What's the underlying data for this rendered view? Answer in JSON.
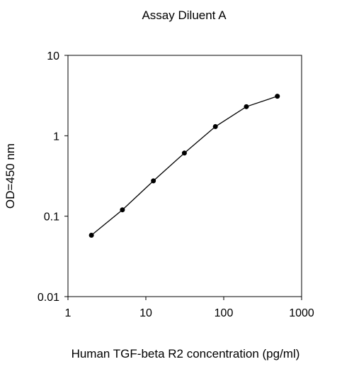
{
  "chart_data": {
    "type": "line",
    "title": "Assay Diluent A",
    "xlabel": "Human TGF-beta R2 concentration (pg/ml)",
    "ylabel": "OD=450 nm",
    "x_scale": "log",
    "y_scale": "log",
    "xlim": [
      1,
      1000
    ],
    "ylim": [
      0.01,
      10
    ],
    "x_ticks": [
      1,
      10,
      100,
      1000
    ],
    "x_tick_labels": [
      "1",
      "10",
      "100",
      "1000"
    ],
    "y_ticks": [
      0.01,
      0.1,
      1,
      10
    ],
    "y_tick_labels": [
      "0.01",
      "0.1",
      "1",
      "10"
    ],
    "grid": false,
    "legend": "none",
    "series": [
      {
        "x": [
          2,
          5,
          12.5,
          31.25,
          78.13,
          195.31,
          488.28
        ],
        "y": [
          0.058,
          0.12,
          0.275,
          0.61,
          1.3,
          2.3,
          3.1
        ]
      }
    ],
    "colors": {
      "line": "#000000",
      "marker": "#000000",
      "axis": "#000000"
    }
  }
}
